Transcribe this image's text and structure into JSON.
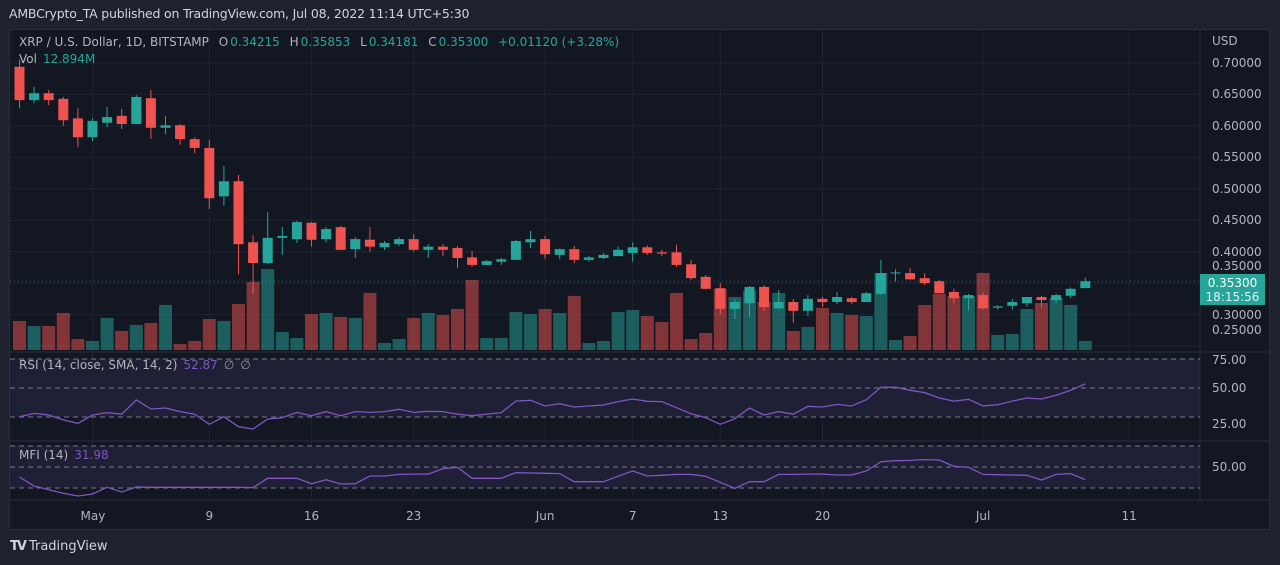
{
  "header": {
    "published": "AMBCrypto_TA published on TradingView.com, Jul 08, 2022 11:14 UTC+5:30"
  },
  "legend": {
    "symbol": "XRP / U.S. Dollar, 1D, BITSTAMP",
    "o_label": "O",
    "o": "0.34215",
    "h_label": "H",
    "h": "0.35853",
    "l_label": "L",
    "l": "0.34181",
    "c_label": "C",
    "c": "0.35300",
    "change": "+0.01120 (+3.28%)",
    "vol_label": "Vol",
    "vol": "12.894M"
  },
  "rsi": {
    "label": "RSI (14, close, SMA, 14, 2)",
    "value": "52.87",
    "extra1": "∅",
    "extra2": "∅"
  },
  "mfi": {
    "label": "MFI (14)",
    "value": "31.98"
  },
  "price_axis": {
    "currency": "USD",
    "last_price": "0.35300",
    "countdown": "18:15:56"
  },
  "footer": {
    "brand": "TradingView",
    "logo_icon": "tradingview-logo-icon"
  },
  "colors": {
    "up": "#26a69a",
    "down": "#ef5350",
    "indicator": "#7e57c2",
    "background": "#131722"
  },
  "chart_data": [
    {
      "type": "candlestick",
      "title": "XRP / U.S. Dollar, 1D, BITSTAMP",
      "ylabel": "USD",
      "ylim": [
        0.25,
        0.7
      ],
      "y_ticks": [
        "0.70000",
        "0.65000",
        "0.60000",
        "0.55000",
        "0.50000",
        "0.45000",
        "0.40000",
        "0.35000",
        "0.30000",
        "0.25000"
      ],
      "x_ticks": [
        {
          "label": "May",
          "date": "2022-05-01"
        },
        {
          "label": "9",
          "date": "2022-05-09"
        },
        {
          "label": "16",
          "date": "2022-05-16"
        },
        {
          "label": "23",
          "date": "2022-05-23"
        },
        {
          "label": "Jun",
          "date": "2022-06-01"
        },
        {
          "label": "7",
          "date": "2022-06-07"
        },
        {
          "label": "13",
          "date": "2022-06-13"
        },
        {
          "label": "20",
          "date": "2022-06-20"
        },
        {
          "label": "Jul",
          "date": "2022-07-01"
        },
        {
          "label": "11",
          "date": "2022-07-11"
        }
      ],
      "grid": true,
      "columns": [
        "date",
        "open",
        "high",
        "low",
        "close",
        "volume_M"
      ],
      "candles": [
        [
          "2022-04-26",
          0.694,
          0.705,
          0.628,
          0.641,
          41.5
        ],
        [
          "2022-04-27",
          0.641,
          0.662,
          0.636,
          0.652,
          34.3
        ],
        [
          "2022-04-28",
          0.652,
          0.657,
          0.633,
          0.641,
          34.3
        ],
        [
          "2022-04-29",
          0.643,
          0.646,
          0.6,
          0.609,
          52.9
        ],
        [
          "2022-04-30",
          0.612,
          0.628,
          0.566,
          0.582,
          15.7
        ],
        [
          "2022-05-01",
          0.582,
          0.612,
          0.576,
          0.608,
          12.9
        ],
        [
          "2022-05-02",
          0.605,
          0.63,
          0.598,
          0.614,
          45.8
        ],
        [
          "2022-05-03",
          0.616,
          0.627,
          0.595,
          0.603,
          27.2
        ],
        [
          "2022-05-04",
          0.603,
          0.649,
          0.603,
          0.646,
          35.8
        ],
        [
          "2022-05-05",
          0.644,
          0.657,
          0.579,
          0.597,
          38.6
        ],
        [
          "2022-05-06",
          0.597,
          0.616,
          0.587,
          0.601,
          64.4
        ],
        [
          "2022-05-07",
          0.601,
          0.603,
          0.57,
          0.579,
          8.6
        ],
        [
          "2022-05-08",
          0.579,
          0.582,
          0.557,
          0.565,
          12.9
        ],
        [
          "2022-05-09",
          0.565,
          0.578,
          0.468,
          0.485,
          44.3
        ],
        [
          "2022-05-10",
          0.488,
          0.536,
          0.473,
          0.512,
          41.5
        ],
        [
          "2022-05-11",
          0.512,
          0.522,
          0.364,
          0.412,
          65.8
        ],
        [
          "2022-05-12",
          0.415,
          0.426,
          0.333,
          0.382,
          97.2
        ],
        [
          "2022-05-13",
          0.382,
          0.463,
          0.38,
          0.422,
          115.8
        ],
        [
          "2022-05-14",
          0.422,
          0.439,
          0.395,
          0.425,
          25.7
        ],
        [
          "2022-05-15",
          0.42,
          0.449,
          0.414,
          0.447,
          17.2
        ],
        [
          "2022-05-16",
          0.446,
          0.447,
          0.408,
          0.419,
          51.5
        ],
        [
          "2022-05-17",
          0.42,
          0.439,
          0.415,
          0.436,
          52.9
        ],
        [
          "2022-05-18",
          0.439,
          0.441,
          0.403,
          0.403,
          47.2
        ],
        [
          "2022-05-19",
          0.404,
          0.423,
          0.39,
          0.42,
          45.8
        ],
        [
          "2022-05-20",
          0.419,
          0.439,
          0.4,
          0.408,
          81.5
        ],
        [
          "2022-05-21",
          0.407,
          0.417,
          0.403,
          0.414,
          10.0
        ],
        [
          "2022-05-22",
          0.412,
          0.423,
          0.409,
          0.42,
          15.7
        ],
        [
          "2022-05-23",
          0.42,
          0.428,
          0.4,
          0.403,
          45.8
        ],
        [
          "2022-05-24",
          0.403,
          0.412,
          0.39,
          0.408,
          52.9
        ],
        [
          "2022-05-25",
          0.408,
          0.412,
          0.393,
          0.403,
          50.0
        ],
        [
          "2022-05-26",
          0.406,
          0.409,
          0.374,
          0.39,
          58.6
        ],
        [
          "2022-05-27",
          0.391,
          0.401,
          0.376,
          0.379,
          100.1
        ],
        [
          "2022-05-28",
          0.379,
          0.387,
          0.379,
          0.385,
          17.2
        ],
        [
          "2022-05-29",
          0.384,
          0.39,
          0.379,
          0.388,
          17.2
        ],
        [
          "2022-05-30",
          0.387,
          0.419,
          0.387,
          0.417,
          54.3
        ],
        [
          "2022-05-31",
          0.415,
          0.433,
          0.406,
          0.42,
          51.5
        ],
        [
          "2022-06-01",
          0.42,
          0.425,
          0.388,
          0.396,
          58.6
        ],
        [
          "2022-06-02",
          0.395,
          0.405,
          0.388,
          0.404,
          52.9
        ],
        [
          "2022-06-03",
          0.404,
          0.409,
          0.382,
          0.387,
          77.2
        ],
        [
          "2022-06-04",
          0.387,
          0.393,
          0.384,
          0.391,
          10.0
        ],
        [
          "2022-06-05",
          0.39,
          0.398,
          0.388,
          0.395,
          12.9
        ],
        [
          "2022-06-06",
          0.393,
          0.408,
          0.393,
          0.403,
          54.3
        ],
        [
          "2022-06-07",
          0.398,
          0.415,
          0.384,
          0.407,
          57.2
        ],
        [
          "2022-06-08",
          0.407,
          0.41,
          0.395,
          0.398,
          48.6
        ],
        [
          "2022-06-09",
          0.399,
          0.403,
          0.393,
          0.397,
          40.0
        ],
        [
          "2022-06-10",
          0.399,
          0.411,
          0.376,
          0.379,
          81.5
        ],
        [
          "2022-06-11",
          0.38,
          0.387,
          0.355,
          0.358,
          15.7
        ],
        [
          "2022-06-12",
          0.36,
          0.363,
          0.34,
          0.341,
          24.3
        ],
        [
          "2022-06-13",
          0.342,
          0.35,
          0.3,
          0.309,
          87.2
        ],
        [
          "2022-06-14",
          0.309,
          0.325,
          0.293,
          0.32,
          75.8
        ],
        [
          "2022-06-15",
          0.318,
          0.345,
          0.296,
          0.344,
          84.4
        ],
        [
          "2022-06-16",
          0.344,
          0.347,
          0.306,
          0.312,
          68.6
        ],
        [
          "2022-06-17",
          0.31,
          0.339,
          0.309,
          0.32,
          81.5
        ],
        [
          "2022-06-18",
          0.32,
          0.325,
          0.287,
          0.306,
          27.2
        ],
        [
          "2022-06-19",
          0.306,
          0.331,
          0.298,
          0.325,
          32.9
        ],
        [
          "2022-06-20",
          0.325,
          0.328,
          0.312,
          0.32,
          60.1
        ],
        [
          "2022-06-21",
          0.32,
          0.336,
          0.317,
          0.328,
          52.9
        ],
        [
          "2022-06-22",
          0.326,
          0.328,
          0.317,
          0.32,
          50.0
        ],
        [
          "2022-06-23",
          0.32,
          0.336,
          0.32,
          0.334,
          48.6
        ],
        [
          "2022-06-24",
          0.333,
          0.387,
          0.331,
          0.366,
          110.1
        ],
        [
          "2022-06-25",
          0.366,
          0.372,
          0.353,
          0.367,
          14.3
        ],
        [
          "2022-06-26",
          0.366,
          0.374,
          0.356,
          0.356,
          20.0
        ],
        [
          "2022-06-27",
          0.358,
          0.366,
          0.347,
          0.35,
          64.4
        ],
        [
          "2022-06-28",
          0.353,
          0.355,
          0.334,
          0.334,
          80.1
        ],
        [
          "2022-06-29",
          0.336,
          0.341,
          0.318,
          0.326,
          77.2
        ],
        [
          "2022-06-30",
          0.326,
          0.333,
          0.306,
          0.331,
          77.2
        ],
        [
          "2022-07-01",
          0.331,
          0.334,
          0.308,
          0.31,
          110.1
        ],
        [
          "2022-07-02",
          0.311,
          0.315,
          0.308,
          0.313,
          21.5
        ],
        [
          "2022-07-03",
          0.314,
          0.325,
          0.308,
          0.32,
          22.9
        ],
        [
          "2022-07-04",
          0.318,
          0.328,
          0.313,
          0.328,
          58.6
        ],
        [
          "2022-07-05",
          0.328,
          0.33,
          0.311,
          0.323,
          67.2
        ],
        [
          "2022-07-06",
          0.323,
          0.333,
          0.318,
          0.331,
          74.4
        ],
        [
          "2022-07-07",
          0.33,
          0.343,
          0.326,
          0.341,
          64.4
        ],
        [
          "2022-07-08",
          0.34215,
          0.35853,
          0.34181,
          0.353,
          12.894
        ]
      ]
    },
    {
      "type": "line",
      "title": "RSI (14, close, SMA, 14, 2)",
      "ylim": [
        20,
        80
      ],
      "y_ticks": [
        "75.00",
        "50.00",
        "25.00"
      ],
      "bands": [
        70,
        50,
        30
      ],
      "values": [
        30.2,
        32.5,
        31.4,
        28,
        25.6,
        31.4,
        33,
        31.9,
        41.7,
        35.5,
        36.2,
        33.7,
        31.9,
        25,
        30.2,
        23.3,
        21.7,
        28.6,
        29.5,
        33.2,
        30.9,
        33.7,
        30.9,
        33.7,
        33.2,
        33.7,
        35.3,
        33.2,
        33.9,
        33.7,
        32,
        30.9,
        32,
        33,
        41,
        41.5,
        37.6,
        39.2,
        36.9,
        37.6,
        38.3,
        40.6,
        42.4,
        40.8,
        40.6,
        36.4,
        32.3,
        29.5,
        25,
        28.8,
        36.2,
        31.4,
        33.7,
        31.9,
        37.4,
        36.9,
        38.7,
        37.6,
        41.9,
        50.5,
        50.5,
        48.4,
        46.8,
        43.1,
        41,
        42.2,
        37.6,
        38.5,
        41,
        43.1,
        42.4,
        45,
        48.4,
        52.87
      ]
    },
    {
      "type": "line",
      "title": "MFI (14)",
      "ylim": [
        0,
        100
      ],
      "y_ticks": [
        "50.00"
      ],
      "bands": [
        80,
        50,
        20
      ],
      "values": [
        35.7,
        22.9,
        17.6,
        12.4,
        8.6,
        11.4,
        21,
        14.3,
        21.4,
        21,
        21,
        21,
        21,
        21,
        21,
        21,
        20.5,
        33.8,
        33.8,
        33.8,
        26.2,
        31.9,
        25.7,
        26.2,
        37.1,
        37.1,
        39.5,
        39.8,
        39.8,
        47.6,
        49.5,
        33.8,
        33.8,
        33.8,
        41.9,
        41.4,
        41,
        40.5,
        29,
        29,
        29,
        36.7,
        44.3,
        37.1,
        38.1,
        39.5,
        39.5,
        36.7,
        28.1,
        19.5,
        29,
        29,
        39.5,
        39.5,
        39.8,
        39.8,
        38.6,
        38.6,
        44.3,
        57.6,
        59,
        59.5,
        60.5,
        60,
        51,
        49.5,
        39.5,
        39,
        38.6,
        38.1,
        31.4,
        39.5,
        40.5,
        31.98
      ]
    }
  ]
}
